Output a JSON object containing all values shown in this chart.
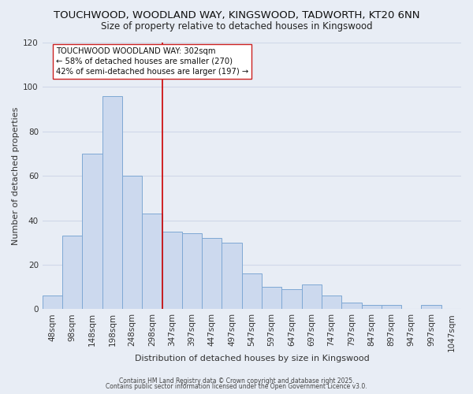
{
  "title": "TOUCHWOOD, WOODLAND WAY, KINGSWOOD, TADWORTH, KT20 6NN",
  "subtitle": "Size of property relative to detached houses in Kingswood",
  "xlabel": "Distribution of detached houses by size in Kingswood",
  "ylabel": "Number of detached properties",
  "bar_labels": [
    "48sqm",
    "98sqm",
    "148sqm",
    "198sqm",
    "248sqm",
    "298sqm",
    "347sqm",
    "397sqm",
    "447sqm",
    "497sqm",
    "547sqm",
    "597sqm",
    "647sqm",
    "697sqm",
    "747sqm",
    "797sqm",
    "847sqm",
    "897sqm",
    "947sqm",
    "997sqm",
    "1047sqm"
  ],
  "bar_values": [
    6,
    33,
    70,
    96,
    60,
    43,
    35,
    34,
    32,
    30,
    16,
    10,
    9,
    11,
    6,
    3,
    2,
    2,
    0,
    2,
    0
  ],
  "bar_color": "#ccd9ee",
  "bar_edge_color": "#7ea8d4",
  "vline_x": 5.5,
  "vline_color": "#cc0000",
  "ylim": [
    0,
    120
  ],
  "yticks": [
    0,
    20,
    40,
    60,
    80,
    100,
    120
  ],
  "annotation_title": "TOUCHWOOD WOODLAND WAY: 302sqm",
  "annotation_line1": "← 58% of detached houses are smaller (270)",
  "annotation_line2": "42% of semi-detached houses are larger (197) →",
  "footer_line1": "Contains HM Land Registry data © Crown copyright and database right 2025.",
  "footer_line2": "Contains public sector information licensed under the Open Government Licence v3.0.",
  "background_color": "#e8edf5",
  "grid_color": "#d0d8e8",
  "title_fontsize": 9.5,
  "subtitle_fontsize": 8.5,
  "axis_fontsize": 8,
  "tick_fontsize": 7.5
}
